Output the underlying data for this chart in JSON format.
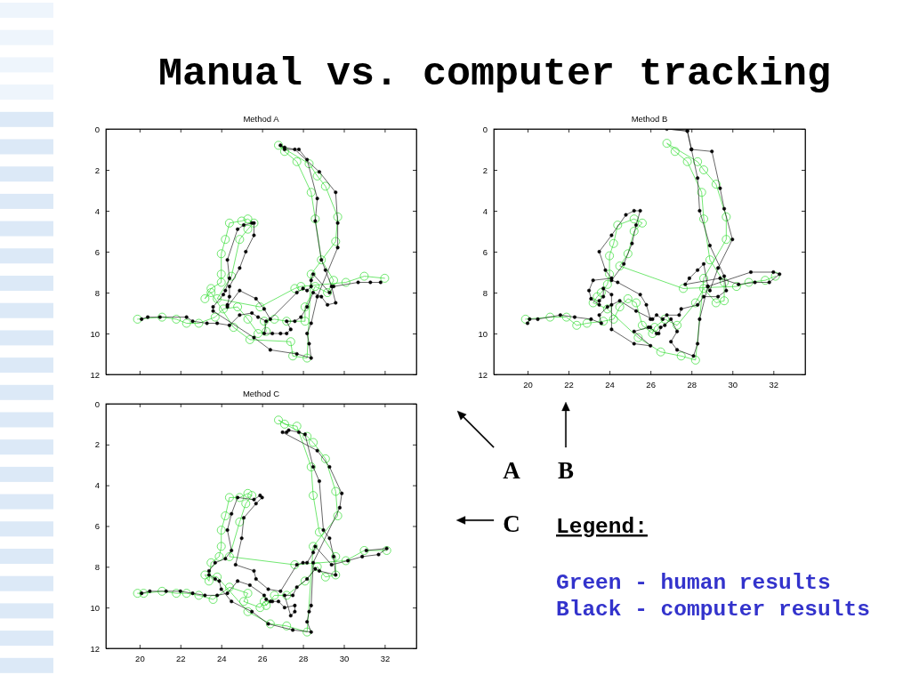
{
  "chart_data": [
    {
      "type": "line",
      "title": "Method A",
      "xlim": [
        18.35,
        33.55
      ],
      "ylim": [
        12,
        0
      ],
      "xticks": [
        20,
        22,
        24,
        26,
        28,
        30,
        32
      ],
      "yticks": [
        0,
        2,
        4,
        6,
        8,
        10,
        12
      ],
      "tick_labels": "y",
      "marker": "circle",
      "annotations": [
        "A"
      ],
      "series": [
        {
          "type": "line",
          "color": "#33dd33",
          "x": [
            19.9,
            21.1,
            21.8,
            22.3,
            22.9,
            23.7,
            24.1,
            24.8,
            25.3,
            25.8,
            26.2,
            26.1,
            26.6,
            27.2,
            28.1,
            28.1,
            28.6,
            29.2,
            29.5,
            28.9,
            28.6,
            28.4,
            27.7,
            27.1,
            26.8,
            28.3,
            28.7,
            29.1,
            29.7,
            29.6,
            28.4,
            28.2,
            27.5,
            27.4,
            25.4,
            24.6,
            23.5,
            23.2,
            23.5,
            24.0,
            24.0,
            24.0,
            24.2,
            24.4,
            25.0,
            25.3,
            25.6,
            25.3,
            24.9,
            24.5,
            23.8,
            25.9,
            27.6,
            27.9,
            30.1,
            31.0,
            32.0
          ],
          "values": [
            9.3,
            9.2,
            9.3,
            9.5,
            9.5,
            9.2,
            8.8,
            8.7,
            9.3,
            10.0,
            9.9,
            9.4,
            9.3,
            9.4,
            9.4,
            8.7,
            7.7,
            8.0,
            7.4,
            6.4,
            4.4,
            3.1,
            1.6,
            1.1,
            0.8,
            1.7,
            2.3,
            2.8,
            4.3,
            5.5,
            7.1,
            11.2,
            11.1,
            10.4,
            10.3,
            9.7,
            8.0,
            8.3,
            7.8,
            7.5,
            7.1,
            6.1,
            5.4,
            4.6,
            4.5,
            4.4,
            4.6,
            4.9,
            5.4,
            7.2,
            8.3,
            8.7,
            7.8,
            7.7,
            7.5,
            7.2,
            7.3
          ]
        },
        {
          "type": "line",
          "color": "#000000",
          "x": [
            20.1,
            20.4,
            21.0,
            22.3,
            22.6,
            23.3,
            23.8,
            24.4,
            24.9,
            25.5,
            25.8,
            26.2,
            26.1,
            26.5,
            26.9,
            27.2,
            27.4,
            27.2,
            27.6,
            27.9,
            28.2,
            28.5,
            28.9,
            29.2,
            29.6,
            29.4,
            29.1,
            28.9,
            28.6,
            28.7,
            28.2,
            27.8,
            27.1,
            26.9,
            27.1,
            27.6,
            28.8,
            29.6,
            29.7,
            29.7,
            28.7,
            28.4,
            28.2,
            28.3,
            28.4,
            27.7,
            26.4,
            25.6,
            23.6,
            23.6,
            24.1,
            24.2,
            24.4,
            24.3,
            24.8,
            25.1,
            25.5,
            25.6,
            25.6,
            25.2,
            24.9,
            24.4,
            24.4,
            24.3,
            24.3,
            24.9,
            25.7,
            26.1,
            26.4,
            27.7,
            28.0,
            28.2,
            28.4,
            28.4,
            28.5,
            29.3,
            29.5,
            30.7,
            31.3,
            31.8
          ],
          "values": [
            9.3,
            9.2,
            9.2,
            9.2,
            9.4,
            9.5,
            9.5,
            9.6,
            9.1,
            9.0,
            9.2,
            9.4,
            10.0,
            10.0,
            10.0,
            10.0,
            9.8,
            9.4,
            9.4,
            9.2,
            8.7,
            8.0,
            8.2,
            8.6,
            8.5,
            7.7,
            6.9,
            6.4,
            4.5,
            3.4,
            1.5,
            1.0,
            1.0,
            0.8,
            0.9,
            1.0,
            2.1,
            3.1,
            4.6,
            5.8,
            8.2,
            9.5,
            10.0,
            10.5,
            11.2,
            11.0,
            10.8,
            10.2,
            8.9,
            8.7,
            8.1,
            7.9,
            7.3,
            6.4,
            4.9,
            4.7,
            4.6,
            4.6,
            5.2,
            6.0,
            6.8,
            7.7,
            8.2,
            8.6,
            8.7,
            7.9,
            8.3,
            8.8,
            9.3,
            8.0,
            7.8,
            7.9,
            7.7,
            7.4,
            7.1,
            8.0,
            7.7,
            7.5,
            7.5,
            7.5
          ]
        }
      ]
    },
    {
      "type": "line",
      "title": "Method B",
      "xlim": [
        18.35,
        33.55
      ],
      "ylim": [
        12,
        0
      ],
      "xticks": [
        20,
        22,
        24,
        26,
        28,
        30,
        32
      ],
      "yticks": [
        0,
        2,
        4,
        6,
        8,
        10,
        12
      ],
      "marker": "circle",
      "annotations": [
        "B"
      ],
      "series": [
        {
          "type": "line",
          "color": "#33dd33",
          "x": [
            19.9,
            21.1,
            21.9,
            22.4,
            22.9,
            23.7,
            24.2,
            24.5,
            24.9,
            25.3,
            25.6,
            26.1,
            26.2,
            26.7,
            27.3,
            28.2,
            28.6,
            29.2,
            29.6,
            29.6,
            28.9,
            28.6,
            28.5,
            27.8,
            27.2,
            26.8,
            28.3,
            28.6,
            29.2,
            29.7,
            29.7,
            28.6,
            28.2,
            27.5,
            26.5,
            25.4,
            23.9,
            23.2,
            23.4,
            23.6,
            23.9,
            24.0,
            24.0,
            24.2,
            24.4,
            25.2,
            25.6,
            25.2,
            24.9,
            24.5,
            27.6,
            30.2,
            30.8,
            31.6,
            32.1
          ],
          "values": [
            9.3,
            9.2,
            9.2,
            9.6,
            9.5,
            9.4,
            9.3,
            8.7,
            8.3,
            8.5,
            9.6,
            10.0,
            9.7,
            9.3,
            9.6,
            8.5,
            7.8,
            8.5,
            8.4,
            7.5,
            6.4,
            4.4,
            3.1,
            1.6,
            1.1,
            0.7,
            1.6,
            2.0,
            2.7,
            4.3,
            5.4,
            7.3,
            11.3,
            11.1,
            10.9,
            10.2,
            8.8,
            8.5,
            8.2,
            8.0,
            7.6,
            7.1,
            6.2,
            5.6,
            4.7,
            4.4,
            4.6,
            5.0,
            6.1,
            6.7,
            7.8,
            7.7,
            7.5,
            7.4,
            7.2
          ]
        },
        {
          "type": "line",
          "color": "#000000",
          "x": [
            20.0,
            20.1,
            20.5,
            21.6,
            22.3,
            23.1,
            23.6,
            23.5,
            23.9,
            24.1,
            24.5,
            25.3,
            26.1,
            26.3,
            26.6,
            26.8,
            27.4,
            27.5,
            28.3,
            28.6,
            29.3,
            29.7,
            29.6,
            28.9,
            28.4,
            28.3,
            28.0,
            27.8,
            26.8,
            27.8,
            28.0,
            29.0,
            29.4,
            29.6,
            30.0,
            29.3,
            28.9,
            28.8,
            28.6,
            28.3,
            27.9,
            27.7,
            29.4,
            30.3,
            31.1,
            31.8,
            32.3,
            32.0,
            30.9,
            28.8,
            28.4,
            28.3,
            28.1,
            27.3,
            27.0,
            27.3,
            27.0,
            26.7,
            26.5,
            26.4,
            26.3,
            26.0,
            25.9,
            25.2,
            26.0,
            25.2,
            24.1,
            24.1,
            23.7,
            23.7,
            23.5,
            23.5,
            23.1,
            23.0,
            23.2,
            24.1,
            23.8,
            23.5,
            24.1,
            24.8,
            25.2,
            25.5,
            25.3,
            25.1,
            24.7,
            24.1,
            24.4,
            25.5,
            25.8,
            26.0
          ],
          "values": [
            9.5,
            9.3,
            9.3,
            9.1,
            9.2,
            9.3,
            9.5,
            9.1,
            8.7,
            8.6,
            8.4,
            8.9,
            9.3,
            9.1,
            9.3,
            9.1,
            9.1,
            8.8,
            8.6,
            8.2,
            8.2,
            7.9,
            7.2,
            5.7,
            4.0,
            2.4,
            1.0,
            0.1,
            0.0,
            0.1,
            1.0,
            1.1,
            2.9,
            3.9,
            5.4,
            6.8,
            7.9,
            7.7,
            6.6,
            6.9,
            7.3,
            7.6,
            7.3,
            7.6,
            7.5,
            7.5,
            7.1,
            7.0,
            7.0,
            7.7,
            9.3,
            10.5,
            11.1,
            10.8,
            10.4,
            9.9,
            9.3,
            9.6,
            9.7,
            10.0,
            10.0,
            9.7,
            9.7,
            9.9,
            10.6,
            10.5,
            9.8,
            8.1,
            7.8,
            8.2,
            8.4,
            8.6,
            8.3,
            7.9,
            7.4,
            7.3,
            6.9,
            6.0,
            5.2,
            4.2,
            4.0,
            4.0,
            4.7,
            5.6,
            6.6,
            7.4,
            7.5,
            8.1,
            8.6,
            9.3
          ]
        }
      ]
    },
    {
      "type": "line",
      "title": "Method C",
      "xlim": [
        18.35,
        33.55
      ],
      "ylim": [
        12,
        0
      ],
      "xticks": [
        20,
        22,
        24,
        26,
        28,
        30,
        32
      ],
      "yticks": [
        0,
        2,
        4,
        6,
        8,
        10,
        12
      ],
      "marker": "circle",
      "annotations": [
        "C"
      ],
      "series": [
        {
          "type": "line",
          "color": "#33dd33",
          "x": [
            19.9,
            20.2,
            21.1,
            21.8,
            22.3,
            22.9,
            23.6,
            24.4,
            25.3,
            25.1,
            25.9,
            26.1,
            26.2,
            26.6,
            27.2,
            28.1,
            28.7,
            29.1,
            29.6,
            29.6,
            28.8,
            28.5,
            28.4,
            27.7,
            27.1,
            26.8,
            28.2,
            28.5,
            29.1,
            29.6,
            29.7,
            28.5,
            28.2,
            27.2,
            26.4,
            25.3,
            23.8,
            23.2,
            23.4,
            23.5,
            23.9,
            24.0,
            24.0,
            24.2,
            24.4,
            24.9,
            25.3,
            25.5,
            25.2,
            24.9,
            24.4,
            27.6,
            30.1,
            31.0,
            32.1
          ],
          "values": [
            9.3,
            9.3,
            9.2,
            9.3,
            9.3,
            9.4,
            9.6,
            9.0,
            9.3,
            9.7,
            10.0,
            9.7,
            9.9,
            9.4,
            9.4,
            8.7,
            8.0,
            8.5,
            8.4,
            7.5,
            6.3,
            4.5,
            3.1,
            1.1,
            1.0,
            0.8,
            1.6,
            1.9,
            2.7,
            4.3,
            5.5,
            7.0,
            11.2,
            10.9,
            10.8,
            10.2,
            8.5,
            8.4,
            8.7,
            7.8,
            7.5,
            7.0,
            6.2,
            5.5,
            4.6,
            4.6,
            4.4,
            4.5,
            4.9,
            5.8,
            7.5,
            7.9,
            7.7,
            7.2,
            7.2
          ]
        },
        {
          "type": "line",
          "color": "#000000",
          "x": [
            20.1,
            20.5,
            21.3,
            22.0,
            22.6,
            23.2,
            23.8,
            24.3,
            24.8,
            25.4,
            26.1,
            26.2,
            26.4,
            26.5,
            26.8,
            27.1,
            27.6,
            27.6,
            27.4,
            27.1,
            27.5,
            27.7,
            28.2,
            28.6,
            28.8,
            29.6,
            29.5,
            29.3,
            29.0,
            28.8,
            28.5,
            28.1,
            27.8,
            27.3,
            27.2,
            27.0,
            28.7,
            29.3,
            29.9,
            29.8,
            28.5,
            28.4,
            28.3,
            28.2,
            28.4,
            27.5,
            26.3,
            25.5,
            24.5,
            24.0,
            23.9,
            23.7,
            23.4,
            23.4,
            23.7,
            24.2,
            24.5,
            24.3,
            24.5,
            24.8,
            25.6,
            25.9,
            26.0,
            25.7,
            25.1,
            25.0,
            24.7,
            25.6,
            25.7,
            26.3,
            26.9,
            27.7,
            28.0,
            28.2,
            28.5,
            28.6,
            29.4,
            30.2,
            30.9,
            31.7,
            32.1,
            31.1
          ],
          "values": [
            9.3,
            9.2,
            9.2,
            9.2,
            9.3,
            9.4,
            9.4,
            9.3,
            8.7,
            8.9,
            9.4,
            9.6,
            9.7,
            9.7,
            9.7,
            10.0,
            9.9,
            10.2,
            10.4,
            9.4,
            9.4,
            9.0,
            8.6,
            8.1,
            8.2,
            8.4,
            7.5,
            6.6,
            6.2,
            3.8,
            3.1,
            1.5,
            1.4,
            1.3,
            1.4,
            1.4,
            2.3,
            3.1,
            4.4,
            5.1,
            7.8,
            9.9,
            10.2,
            10.7,
            11.2,
            11.1,
            10.8,
            10.2,
            9.7,
            9.1,
            8.7,
            8.6,
            8.4,
            8.2,
            7.8,
            7.6,
            7.2,
            6.2,
            5.4,
            4.6,
            4.7,
            4.5,
            4.6,
            4.9,
            5.6,
            6.6,
            7.9,
            8.2,
            8.6,
            9.1,
            9.2,
            7.9,
            7.8,
            7.8,
            7.3,
            7.0,
            7.9,
            7.7,
            7.5,
            7.4,
            7.1,
            7.2
          ]
        }
      ]
    },
    {
      "type": "other",
      "title": "Manual vs. computer tracking",
      "annotations": [
        "Legend:",
        "Green - human results",
        "Black - computer results"
      ]
    }
  ]
}
